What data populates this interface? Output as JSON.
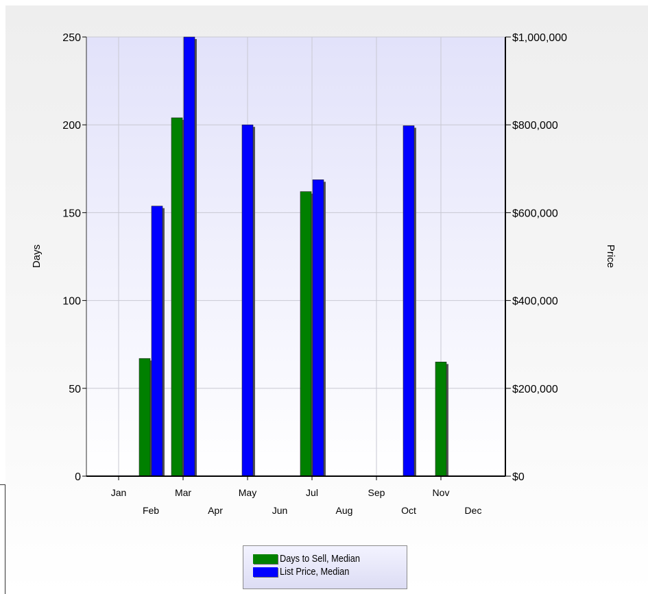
{
  "chart_data": {
    "type": "bar",
    "categories": [
      "Jan",
      "Feb",
      "Mar",
      "Apr",
      "May",
      "Jun",
      "Jul",
      "Aug",
      "Sep",
      "Oct",
      "Nov",
      "Dec"
    ],
    "series": [
      {
        "name": "Days to Sell, Median",
        "axis": "left",
        "color": "#008000",
        "values": [
          null,
          67,
          204,
          null,
          null,
          null,
          162,
          null,
          null,
          null,
          65,
          null
        ]
      },
      {
        "name": "List Price, Median",
        "axis": "right",
        "color": "#0000ff",
        "values": [
          null,
          615000,
          1000000,
          null,
          800000,
          null,
          675000,
          null,
          null,
          798000,
          null,
          null
        ]
      }
    ],
    "ylabel": "Days",
    "y2label": "Price",
    "ylim": [
      0,
      250
    ],
    "y2lim": [
      0,
      1000000
    ],
    "yticks": [
      "0",
      "50",
      "100",
      "150",
      "200",
      "250"
    ],
    "y2ticks": [
      "$0",
      "$200,000",
      "$400,000",
      "$600,000",
      "$800,000",
      "$1,000,000"
    ],
    "grid": true,
    "legend_position": "bottom"
  },
  "legend": {
    "items": [
      {
        "label": "Days to Sell, Median",
        "color": "#008000"
      },
      {
        "label": "List Price, Median",
        "color": "#0000ff"
      }
    ]
  }
}
